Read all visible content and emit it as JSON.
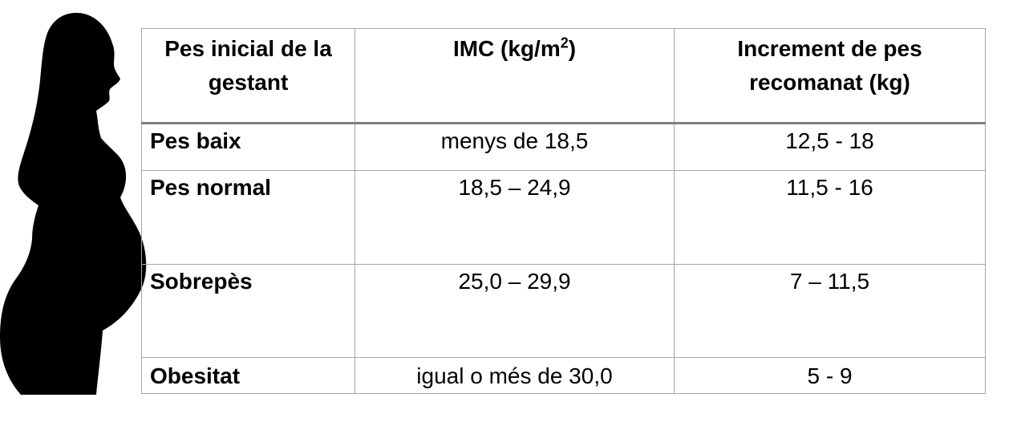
{
  "table": {
    "header": {
      "col1": "Pes inicial de la gestant",
      "col2_base": "IMC (kg/m",
      "col2_sup": "2",
      "col2_end": ")",
      "col3": "Increment de pes recomanat (kg)"
    },
    "rows": [
      {
        "category": "Pes baix",
        "imc": "menys de 18,5",
        "increment": "12,5 - 18"
      },
      {
        "category": "Pes normal",
        "imc": "18,5 – 24,9",
        "increment": "11,5 - 16"
      },
      {
        "category": "Sobrepès",
        "imc": "25,0 – 29,9",
        "increment": "7 – 11,5"
      },
      {
        "category": "Obesitat",
        "imc": "igual o més de 30,0",
        "increment": "5 - 9"
      }
    ]
  },
  "colors": {
    "border": "#a6a6a6",
    "header_rule": "#7f7f7f",
    "silhouette": "#000000"
  },
  "icons": {
    "silhouette": "pregnant-woman-silhouette"
  }
}
